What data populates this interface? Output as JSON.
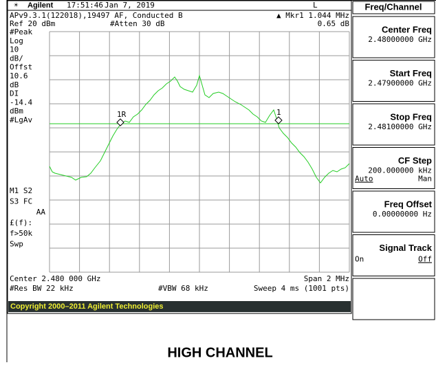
{
  "status_bar": {
    "brand": "Agilent",
    "time": "17:51:46",
    "date": "Jan 7, 2019",
    "mode": "L"
  },
  "header": {
    "title": "APv9.3.1(122018),19497 AF, Conducted B",
    "marker": "▲ Mkr1  1.044 MHz",
    "ref": "Ref 20 dBm",
    "atten": "#Atten 30 dB",
    "marker_value": "0.65 dB"
  },
  "left_labels": [
    "#Peak",
    "Log",
    "10",
    "dB/",
    "Offst",
    "10.6",
    "dB",
    "DI",
    "-14.4",
    "dBm",
    "#LgAv"
  ],
  "left_labels_lower": [
    "M1  S2",
    "S3  FC",
    "AA",
    "£(f):",
    "f>50k",
    "Swp"
  ],
  "markers": [
    "1R",
    "1"
  ],
  "footer": {
    "center": "Center 2.480 000 GHz",
    "span": "Span 2 MHz",
    "rbw": "#Res BW 22 kHz",
    "vbw": "#VBW 68 kHz",
    "sweep": "Sweep 4 ms (1001 pts)"
  },
  "copyright": "Copyright 2000–2011 Agilent Technologies",
  "menu": {
    "title": "Freq/Channel",
    "keys": [
      {
        "label": "Center Freq",
        "value": "2.48000000 GHz"
      },
      {
        "label": "Start Freq",
        "value": "2.47900000 GHz"
      },
      {
        "label": "Stop Freq",
        "value": "2.48100000 GHz"
      },
      {
        "label": "CF Step",
        "value": "200.000000 kHz",
        "left": "Auto",
        "right": "Man"
      },
      {
        "label": "Freq Offset",
        "value": "0.00000000 Hz"
      },
      {
        "label": "Signal Track",
        "left": "On",
        "right": "Off"
      }
    ]
  },
  "caption": "HIGH CHANNEL"
}
